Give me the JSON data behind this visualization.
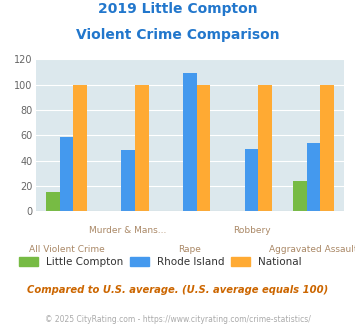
{
  "title_line1": "2019 Little Compton",
  "title_line2": "Violent Crime Comparison",
  "categories": [
    "All Violent Crime",
    "Murder & Mans...",
    "Rape",
    "Robbery",
    "Aggravated Assault"
  ],
  "series": {
    "Little Compton": [
      15,
      0,
      0,
      0,
      24
    ],
    "Rhode Island": [
      59,
      48,
      109,
      49,
      54
    ],
    "National": [
      100,
      100,
      100,
      100,
      100
    ]
  },
  "colors": {
    "Little Compton": "#77bb44",
    "Rhode Island": "#4499ee",
    "National": "#ffaa33"
  },
  "ylim": [
    0,
    120
  ],
  "yticks": [
    0,
    20,
    40,
    60,
    80,
    100,
    120
  ],
  "plot_bg_color": "#dce8ed",
  "title_color": "#2277cc",
  "label_color": "#aa8866",
  "subtitle_text": "Compared to U.S. average. (U.S. average equals 100)",
  "subtitle_color": "#cc6600",
  "footer_text": "© 2025 CityRating.com - https://www.cityrating.com/crime-statistics/",
  "footer_color": "#aaaaaa",
  "legend_order": [
    "Little Compton",
    "Rhode Island",
    "National"
  ],
  "bar_width": 0.22
}
